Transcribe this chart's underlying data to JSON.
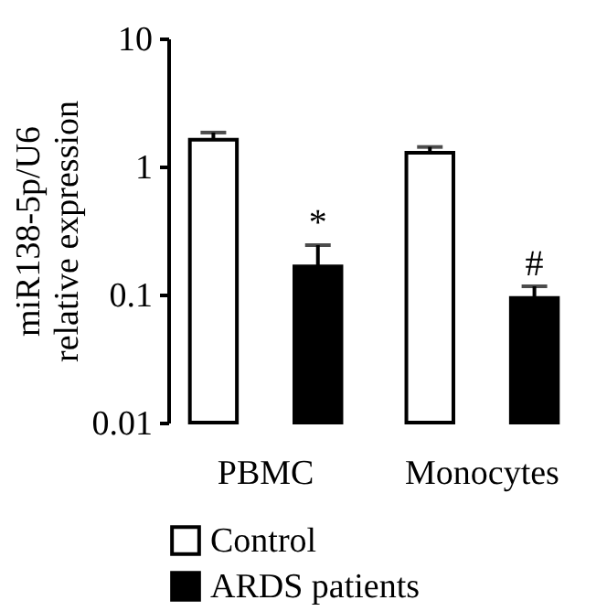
{
  "chart_data": {
    "type": "bar",
    "ylabel": "miR138-5p/U6 relative expression",
    "categories": [
      "PBMC",
      "Monocytes"
    ],
    "series": [
      {
        "name": "Control",
        "color": "#ffffff",
        "values": [
          1.62,
          1.28
        ],
        "errors": [
          [
            1.62,
            1.84
          ],
          [
            1.28,
            1.42
          ]
        ]
      },
      {
        "name": "ARDS patients",
        "color": "#000000",
        "values": [
          0.166,
          0.094
        ],
        "errors": [
          [
            0.166,
            0.243
          ],
          [
            0.094,
            0.116
          ]
        ]
      }
    ],
    "log": "y",
    "ylim": [
      0.01,
      10
    ],
    "yticks": [
      0.01,
      0.1,
      1,
      10
    ],
    "grid": false,
    "legend": "bottom",
    "annotations": [
      "*",
      "#"
    ]
  }
}
